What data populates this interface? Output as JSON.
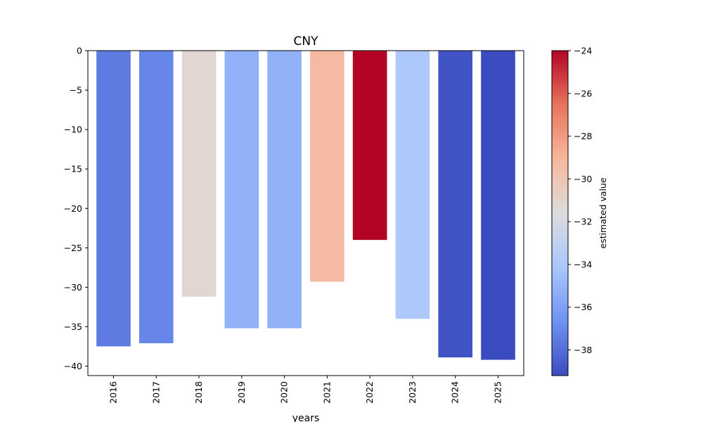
{
  "chart_data": {
    "type": "bar",
    "title": "CNY",
    "xlabel": "years",
    "ylabel": "",
    "categories": [
      "2016",
      "2017",
      "2018",
      "2019",
      "2020",
      "2021",
      "2022",
      "2023",
      "2024",
      "2025"
    ],
    "values": [
      -37.5,
      -37.1,
      -31.2,
      -35.2,
      -35.2,
      -29.3,
      -24.0,
      -34.0,
      -38.9,
      -39.2
    ],
    "ylim": [
      -41.2,
      0
    ],
    "yticks": [
      0,
      -5,
      -10,
      -15,
      -20,
      -25,
      -30,
      -35,
      -40
    ],
    "ytick_labels": [
      "0",
      "−5",
      "−10",
      "−15",
      "−20",
      "−25",
      "−30",
      "−35",
      "−40"
    ],
    "x_tick_rotation": "vertical",
    "grid": false,
    "legend": "none",
    "colorbar": {
      "label": "estimated value",
      "colormap": "coolwarm",
      "range": [
        -39.2,
        -24.0
      ],
      "ticks": [
        -24,
        -26,
        -28,
        -30,
        -32,
        -34,
        -36,
        -38
      ],
      "tick_labels": [
        "−24",
        "−26",
        "−28",
        "−30",
        "−32",
        "−34",
        "−36",
        "−38"
      ],
      "colors": [
        "#3b4cc0",
        "#6f92f3",
        "#aac7fd",
        "#dddcdc",
        "#f7b89c",
        "#e7745b",
        "#b40426"
      ]
    }
  }
}
